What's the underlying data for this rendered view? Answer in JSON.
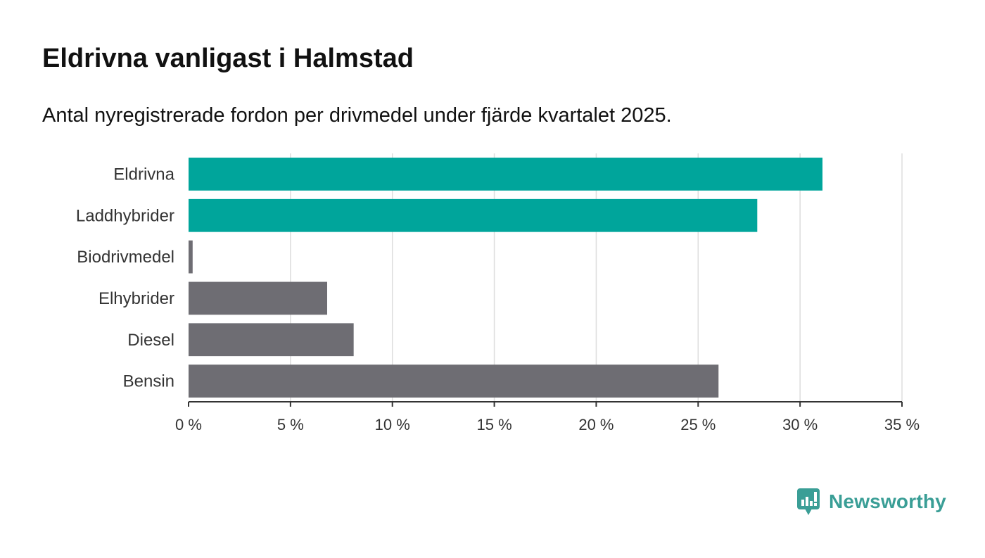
{
  "header": {
    "title": "Eldrivna vanligast i Halmstad",
    "subtitle": "Antal nyregistrerade fordon per drivmedel under fjärde kvartalet 2025."
  },
  "brand": {
    "name": "Newsworthy",
    "color": "#3a9e96"
  },
  "colors": {
    "highlight": "#00a59b",
    "default": "#6e6d73",
    "grid": "#dddddd",
    "axis": "#333333"
  },
  "chart_data": {
    "type": "bar",
    "orientation": "horizontal",
    "title": "Eldrivna vanligast i Halmstad",
    "subtitle": "Antal nyregistrerade fordon per drivmedel under fjärde kvartalet 2025.",
    "xlabel": "",
    "ylabel": "",
    "xlim": [
      0,
      35
    ],
    "x_ticks": [
      0,
      5,
      10,
      15,
      20,
      25,
      30,
      35
    ],
    "x_tick_labels": [
      "0 %",
      "5 %",
      "10 %",
      "15 %",
      "20 %",
      "25 %",
      "30 %",
      "35 %"
    ],
    "grid": true,
    "legend": "none",
    "categories": [
      "Eldrivna",
      "Laddhybrider",
      "Biodrivmedel",
      "Elhybrider",
      "Diesel",
      "Bensin"
    ],
    "values": [
      31.1,
      27.9,
      0.2,
      6.8,
      8.1,
      26.0
    ],
    "highlight": [
      true,
      true,
      false,
      false,
      false,
      false
    ]
  }
}
